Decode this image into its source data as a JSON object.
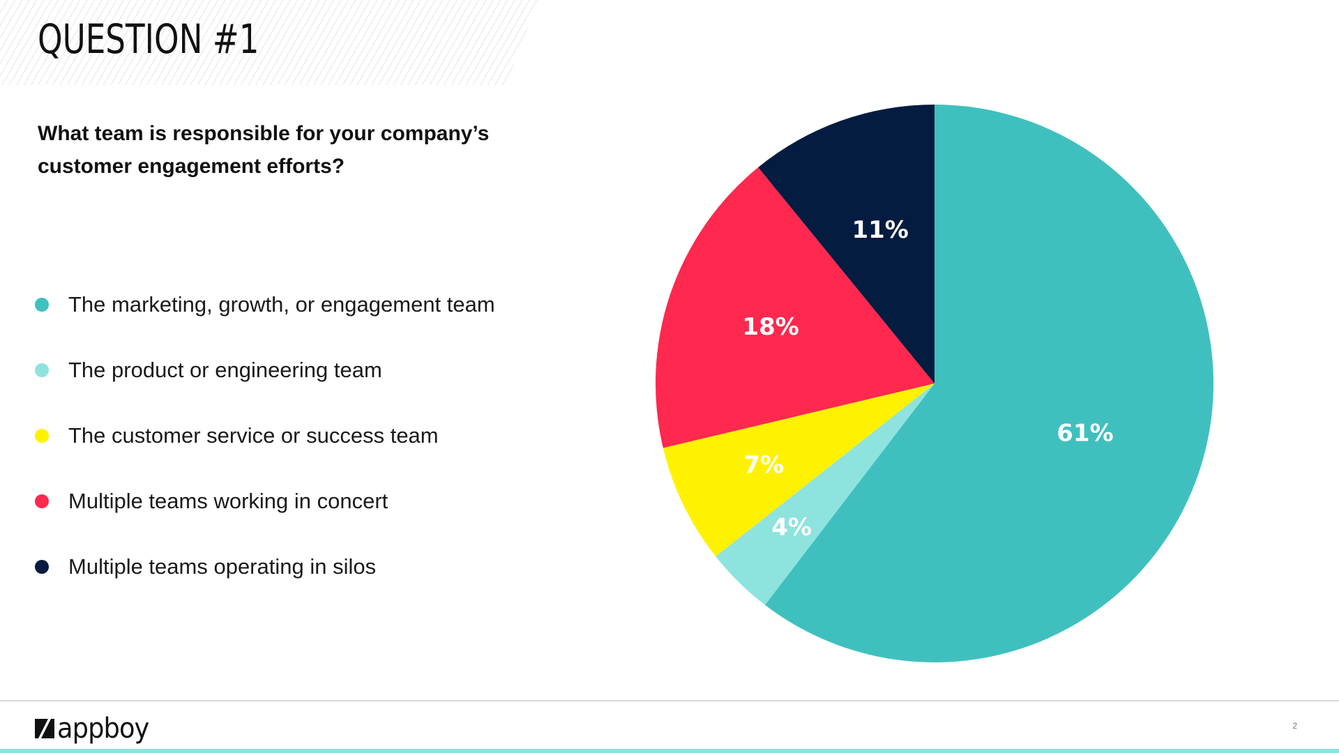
{
  "slide": {
    "title": "QUESTION #1",
    "question": "What team is responsible for your company’s customer engagement efforts?",
    "page_number": "2"
  },
  "brand": {
    "logo_text": "appboy",
    "accent_color": "#8ee3de",
    "line_color": "#d9d9d9"
  },
  "legend": [
    {
      "label": "The marketing, growth, or engagement team",
      "color": "#3fc0be"
    },
    {
      "label": "The product or engineering team",
      "color": "#8ee3de"
    },
    {
      "label": "The customer service or success team",
      "color": "#fff200"
    },
    {
      "label": "Multiple teams working in concert",
      "color": "#ff284e"
    },
    {
      "label": "Multiple teams operating in silos",
      "color": "#041c40"
    }
  ],
  "chart_data": {
    "type": "pie",
    "title": "What team is responsible for your company’s customer engagement efforts?",
    "categories": [
      "The marketing, growth, or engagement team",
      "The product or engineering team",
      "The customer service or success team",
      "Multiple teams working in concert",
      "Multiple teams operating in silos"
    ],
    "values": [
      61,
      4,
      7,
      18,
      11
    ],
    "labels": [
      "61%",
      "4%",
      "7%",
      "18%",
      "11%"
    ],
    "colors": [
      "#3fc0be",
      "#8ee3de",
      "#fff200",
      "#ff284e",
      "#041c40"
    ],
    "start": "12 o'clock",
    "direction": "clockwise",
    "legend_position": "left"
  }
}
